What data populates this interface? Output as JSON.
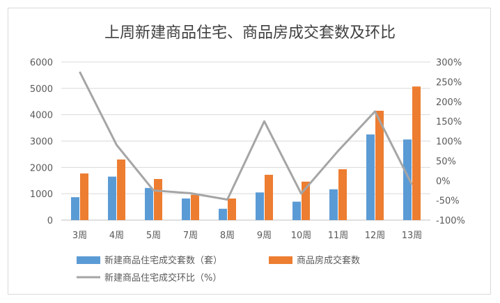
{
  "chart_data": {
    "type": "bar",
    "title": "上周新建商品住宅、商品房成交套数及环比",
    "categories": [
      "3周",
      "4周",
      "5周",
      "7周",
      "8周",
      "9周",
      "10周",
      "11周",
      "12周",
      "13周"
    ],
    "series": [
      {
        "name": "新建商品住宅成交套数（套）",
        "type": "bar",
        "axis": "left",
        "color": "#5b9bd5",
        "values": [
          870,
          1650,
          1220,
          820,
          430,
          1050,
          700,
          1170,
          3250,
          3060
        ]
      },
      {
        "name": "商品房成交套数",
        "type": "bar",
        "axis": "left",
        "color": "#ed7d31",
        "values": [
          1770,
          2300,
          1560,
          960,
          820,
          1720,
          1460,
          1930,
          4150,
          5070
        ]
      },
      {
        "name": "新建商品住宅成交环比（%）",
        "type": "line",
        "axis": "right",
        "color": "#a5a5a5",
        "values": [
          275,
          90,
          -25,
          -32,
          -48,
          150,
          -33,
          75,
          175,
          -10
        ]
      }
    ],
    "y_left": {
      "min": 0,
      "max": 6000,
      "ticks": [
        "0",
        "1000",
        "2000",
        "3000",
        "4000",
        "5000",
        "6000"
      ]
    },
    "y_right": {
      "min": -100,
      "max": 300,
      "ticks": [
        "-100%",
        "-50%",
        "0%",
        "50%",
        "100%",
        "150%",
        "200%",
        "250%",
        "300%"
      ]
    },
    "grid": true,
    "legend_position": "bottom"
  }
}
